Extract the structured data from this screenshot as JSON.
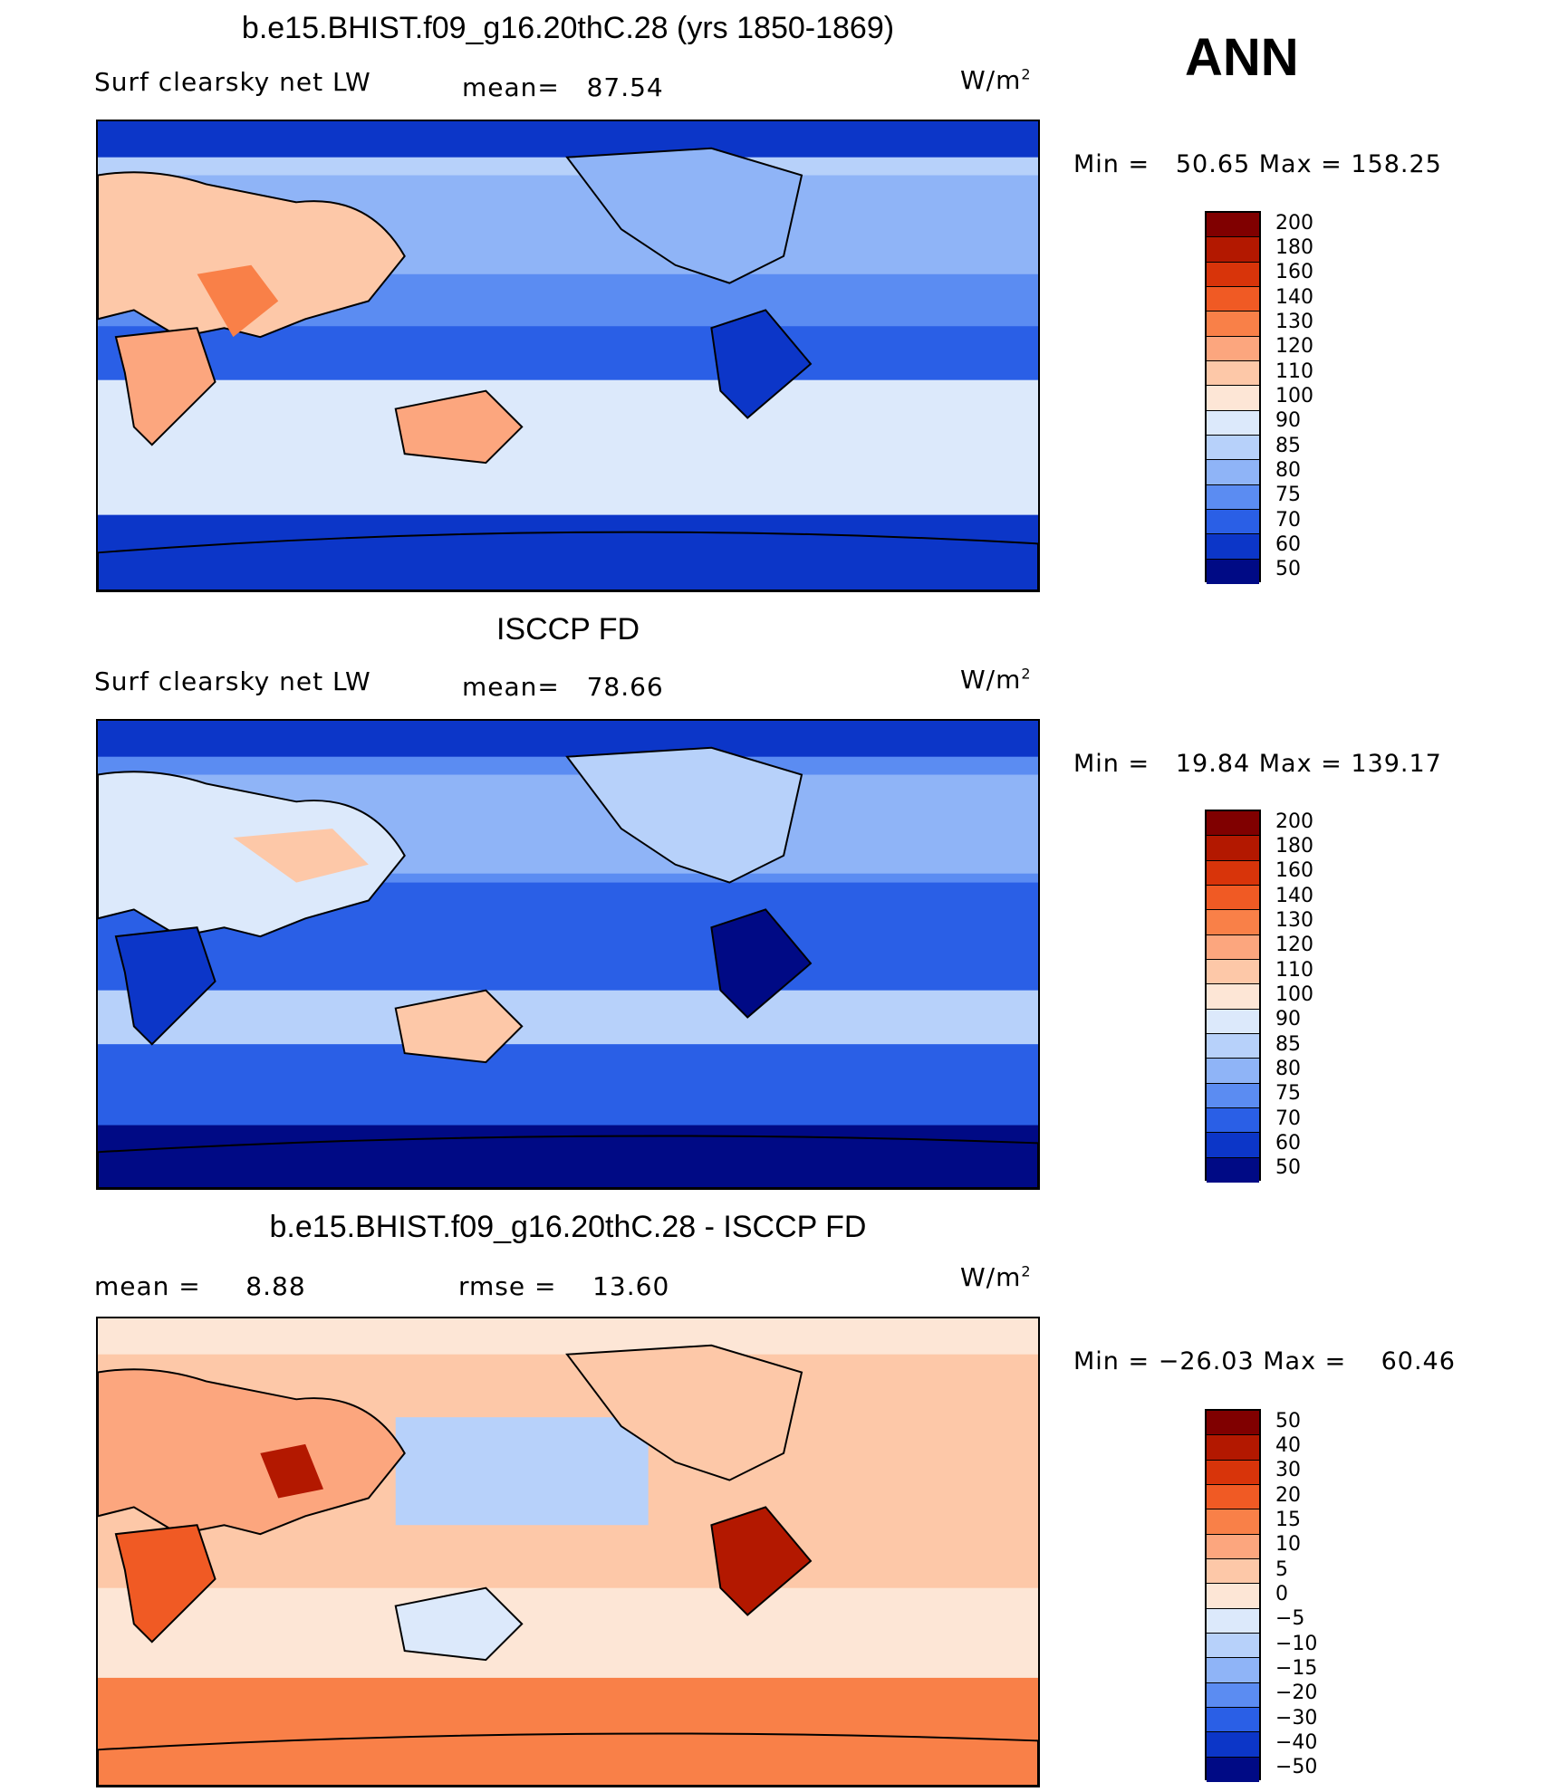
{
  "season": "ANN",
  "units_base": "W/m",
  "units_exp": "2",
  "panels": [
    {
      "title": "b.e15.BHIST.f09_g16.20thC.28 (yrs 1850-1869)",
      "variable": "Surf clearsky net LW",
      "stat_label": "mean=",
      "stat_value": "87.54",
      "min_label": "Min =",
      "min_value": "50.65",
      "max_label": "Max =",
      "max_value": "158.25",
      "levels": [
        "200",
        "180",
        "160",
        "140",
        "130",
        "120",
        "110",
        "100",
        "90",
        "85",
        "80",
        "75",
        "70",
        "60",
        "50"
      ]
    },
    {
      "title": "ISCCP FD",
      "variable": "Surf clearsky net LW",
      "stat_label": "mean=",
      "stat_value": "78.66",
      "min_label": "Min =",
      "min_value": "19.84",
      "max_label": "Max =",
      "max_value": "139.17",
      "levels": [
        "200",
        "180",
        "160",
        "140",
        "130",
        "120",
        "110",
        "100",
        "90",
        "85",
        "80",
        "75",
        "70",
        "60",
        "50"
      ]
    },
    {
      "title": "b.e15.BHIST.f09_g16.20thC.28 - ISCCP FD",
      "stat_label": "mean =",
      "stat_value": "8.88",
      "rmse_label": "rmse =",
      "rmse_value": "13.60",
      "min_label": "Min =",
      "min_value": "−26.03",
      "max_label": "Max =",
      "max_value": "60.46",
      "levels": [
        "50",
        "40",
        "30",
        "20",
        "15",
        "10",
        "5",
        "0",
        "−5",
        "−10",
        "−15",
        "−20",
        "−30",
        "−40",
        "−50"
      ]
    }
  ],
  "colors": {
    "scale": [
      "#800000",
      "#b31800",
      "#d8340a",
      "#f05a24",
      "#f98048",
      "#fca67e",
      "#fdc8a8",
      "#fde6d6",
      "#dce9fb",
      "#b7d1fa",
      "#8fb4f7",
      "#5b8cf2",
      "#2a5fe6",
      "#0c36c8",
      "#000a85"
    ]
  }
}
